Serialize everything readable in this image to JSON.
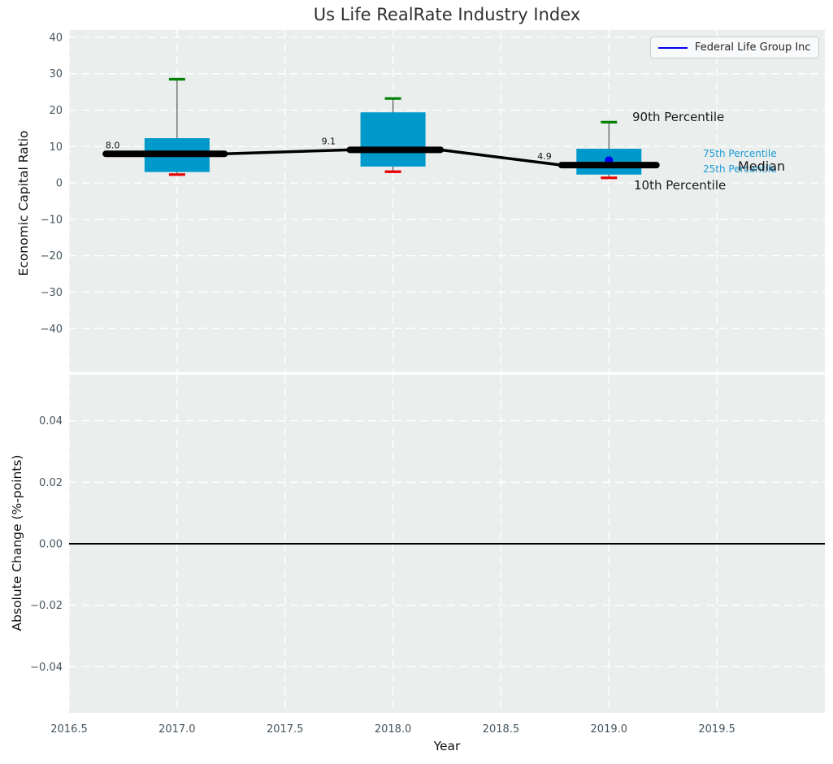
{
  "title": "Us Life RealRate Industry Index",
  "legend": {
    "label": "Federal Life Group Inc"
  },
  "axes": {
    "top_ylabel": "Economic Capital Ratio",
    "bottom_ylabel": "Absolute Change (%-points)",
    "xlabel": "Year"
  },
  "colors": {
    "box_fill": "#0099cc",
    "p90_cap": "#008000",
    "p10_cap": "#e60000",
    "median_line": "#000000",
    "whisker": "#555555",
    "company": "#0000ee",
    "plot_bg": "#eaeeec",
    "grid": "#ffffff",
    "tick_label": "#46555f",
    "annotation_dark": "#1a1a1a",
    "annotation_blue": "#1b9cd8",
    "zero_line": "#000000"
  },
  "chart_data": [
    {
      "type": "boxplot",
      "title": "Us Life RealRate Industry Index",
      "ylabel": "Economic Capital Ratio",
      "ylim": [
        -52,
        42
      ],
      "xlim": [
        2016.5,
        2020.0
      ],
      "grid": "white dashed",
      "legend_position": "upper right",
      "yticks": [
        {
          "v": 40,
          "label": "40"
        },
        {
          "v": 30,
          "label": "30"
        },
        {
          "v": 20,
          "label": "20"
        },
        {
          "v": 10,
          "label": "10"
        },
        {
          "v": 0,
          "label": "0"
        },
        {
          "v": -10,
          "label": "−10"
        },
        {
          "v": -20,
          "label": "−20"
        },
        {
          "v": -30,
          "label": "−30"
        },
        {
          "v": -40,
          "label": "−40"
        }
      ],
      "boxes": [
        {
          "x": 2017,
          "p10": 2.3,
          "p25": 3.0,
          "median": 8.0,
          "p75": 12.3,
          "p90": 28.5,
          "median_label": "8.0"
        },
        {
          "x": 2018,
          "p10": 3.1,
          "p25": 4.5,
          "median": 9.1,
          "p75": 19.4,
          "p90": 23.2,
          "median_label": "9.1"
        },
        {
          "x": 2019,
          "p10": 1.4,
          "p25": 2.3,
          "median": 4.9,
          "p75": 9.4,
          "p90": 16.7,
          "median_label": "4.9"
        }
      ],
      "series": [
        {
          "name": "Federal Life Group Inc",
          "points": [
            {
              "x": 2019,
              "y": 6.2
            }
          ]
        }
      ],
      "annotations": [
        {
          "id": "p90",
          "text": "90th Percentile"
        },
        {
          "id": "p75",
          "text": "75th Percentile"
        },
        {
          "id": "p25",
          "text": "25th Percentile"
        },
        {
          "id": "median",
          "text": "Median"
        },
        {
          "id": "p10",
          "text": "10th Percentile"
        }
      ]
    },
    {
      "type": "line",
      "ylabel": "Absolute Change (%-points)",
      "xlabel": "Year",
      "ylim": [
        -0.055,
        0.055
      ],
      "xlim": [
        2016.5,
        2020.0
      ],
      "grid": "white dashed",
      "zero_line": 0.0,
      "series": [],
      "yticks": [
        {
          "v": 0.04,
          "label": "0.04"
        },
        {
          "v": 0.02,
          "label": "0.02"
        },
        {
          "v": 0.0,
          "label": "0.00"
        },
        {
          "v": -0.02,
          "label": "−0.02"
        },
        {
          "v": -0.04,
          "label": "−0.04"
        }
      ],
      "xticks": [
        {
          "v": 2016.5,
          "label": "2016.5"
        },
        {
          "v": 2017.0,
          "label": "2017.0"
        },
        {
          "v": 2017.5,
          "label": "2017.5"
        },
        {
          "v": 2018.0,
          "label": "2018.0"
        },
        {
          "v": 2018.5,
          "label": "2018.5"
        },
        {
          "v": 2019.0,
          "label": "2019.0"
        },
        {
          "v": 2019.5,
          "label": "2019.5"
        }
      ]
    }
  ]
}
